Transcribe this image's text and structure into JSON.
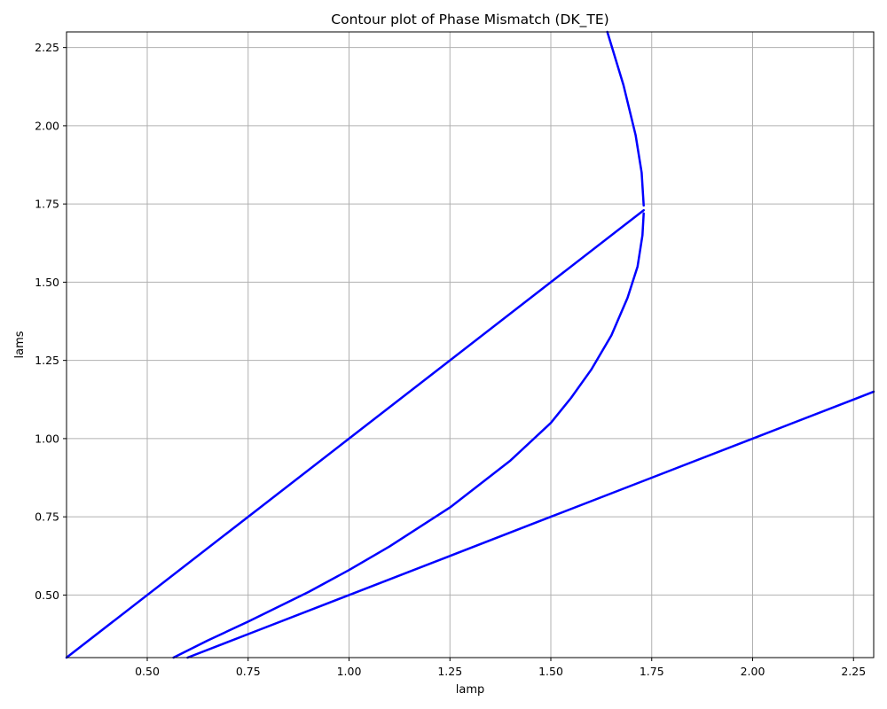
{
  "chart_data": {
    "type": "line",
    "title": "Contour plot of Phase Mismatch (DK_TE)",
    "xlabel": "lamp",
    "ylabel": "lams",
    "xlim": [
      0.3,
      2.3
    ],
    "ylim": [
      0.3,
      2.3
    ],
    "grid": true,
    "x_ticks": [
      "0.50",
      "0.75",
      "1.00",
      "1.25",
      "1.50",
      "1.75",
      "2.00",
      "2.25"
    ],
    "y_ticks": [
      "0.50",
      "0.75",
      "1.00",
      "1.25",
      "1.50",
      "1.75",
      "2.00",
      "2.25"
    ],
    "line_color": "#0000ff",
    "series": [
      {
        "points": [
          [
            0.3,
            0.3
          ],
          [
            0.75,
            0.75
          ],
          [
            1.0,
            1.0
          ],
          [
            1.25,
            1.25
          ],
          [
            1.5,
            1.5
          ],
          [
            1.73,
            1.73
          ]
        ]
      },
      {
        "points": [
          [
            1.64,
            2.3
          ],
          [
            1.68,
            2.13
          ],
          [
            1.71,
            1.97
          ],
          [
            1.725,
            1.85
          ],
          [
            1.73,
            1.745
          ]
        ]
      },
      {
        "points": [
          [
            1.73,
            1.72
          ],
          [
            1.727,
            1.65
          ],
          [
            1.715,
            1.55
          ],
          [
            1.69,
            1.45
          ],
          [
            1.65,
            1.33
          ],
          [
            1.6,
            1.22
          ],
          [
            1.55,
            1.13
          ],
          [
            1.5,
            1.05
          ],
          [
            1.4,
            0.93
          ],
          [
            1.25,
            0.78
          ],
          [
            1.1,
            0.655
          ],
          [
            1.0,
            0.58
          ],
          [
            0.9,
            0.51
          ],
          [
            0.75,
            0.415
          ],
          [
            0.65,
            0.355
          ],
          [
            0.565,
            0.3
          ]
        ]
      },
      {
        "points": [
          [
            0.6,
            0.3
          ],
          [
            0.75,
            0.375
          ],
          [
            1.0,
            0.5
          ],
          [
            1.25,
            0.625
          ],
          [
            1.5,
            0.75
          ],
          [
            1.75,
            0.875
          ],
          [
            2.0,
            1.0
          ],
          [
            2.25,
            1.125
          ],
          [
            2.3,
            1.15
          ]
        ]
      }
    ]
  }
}
